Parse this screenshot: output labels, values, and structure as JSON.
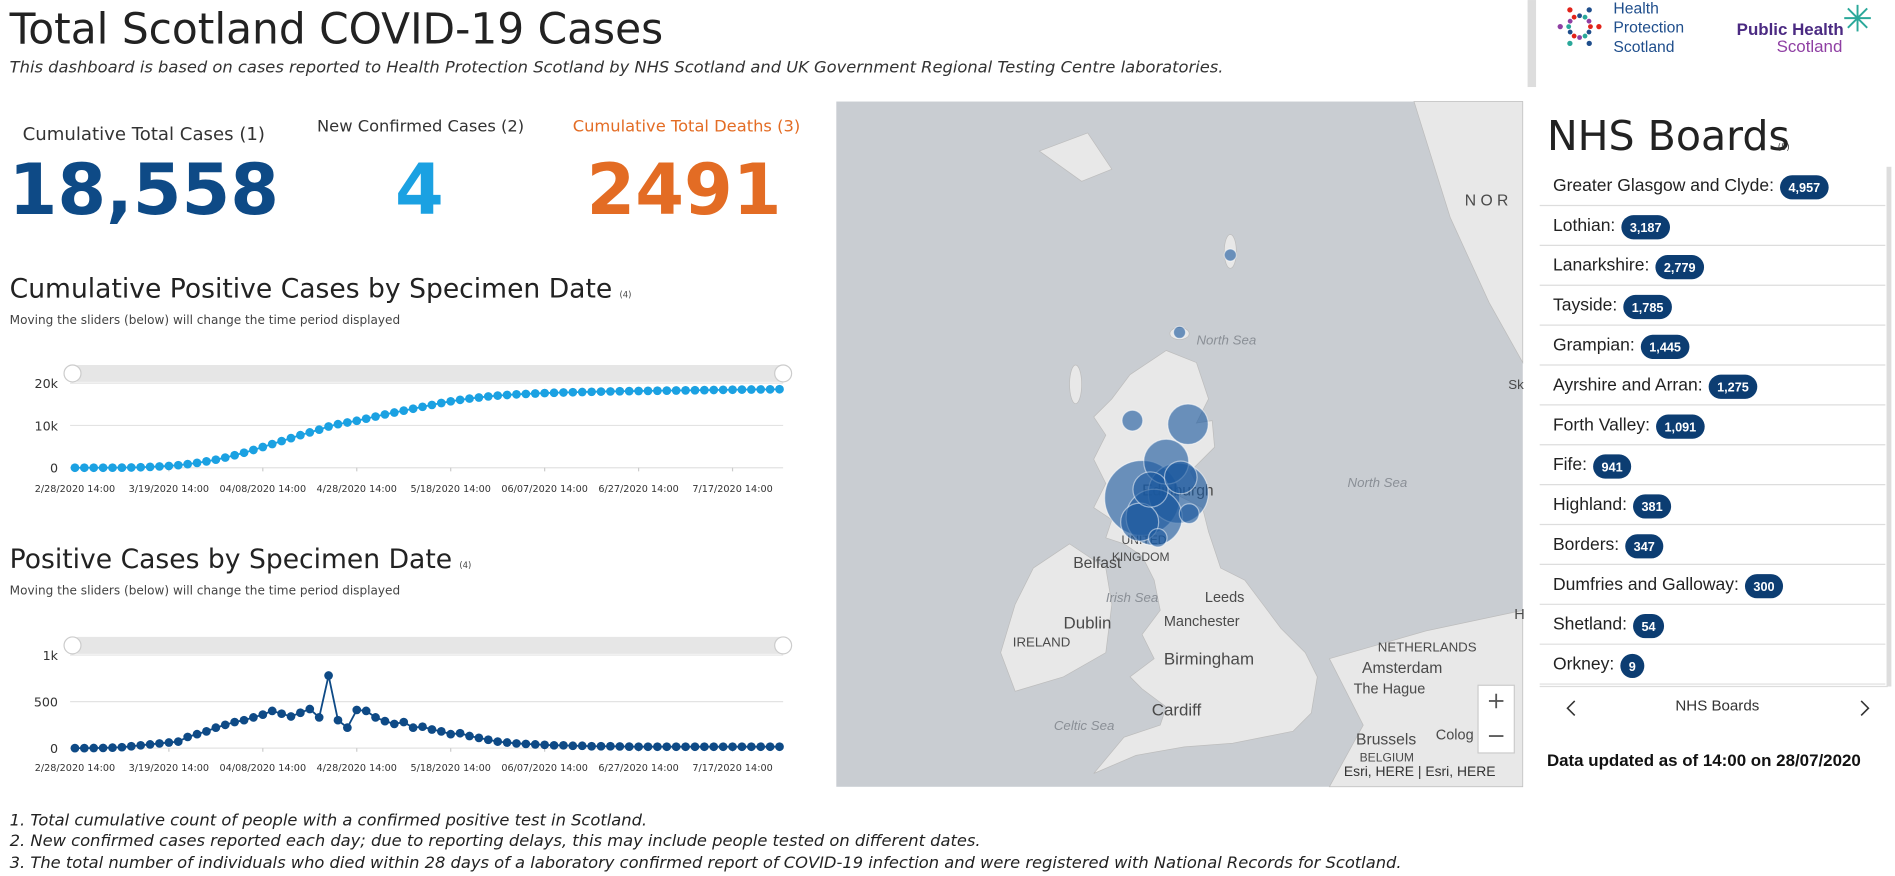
{
  "header": {
    "title": "Total Scotland COVID-19 Cases",
    "subtitle": "This dashboard is based on cases reported to Health Protection Scotland by NHS Scotland and UK Government Regional Testing Centre laboratories.",
    "logo_hps": [
      "Health",
      "Protection",
      "Scotland"
    ],
    "logo_phs": [
      "Public Health",
      "Scotland"
    ]
  },
  "kpis": [
    {
      "label": "Cumulative Total Cases (1)",
      "value": 18558,
      "value_label": "18,558"
    },
    {
      "label": "New Confirmed Cases (2)",
      "value": 4
    },
    {
      "label": "Cumulative Total Deaths (3)",
      "value": 2491
    }
  ],
  "charts": [
    {
      "type": "line",
      "title": "Cumulative Positive Cases by Specimen Date",
      "ref": "(4)",
      "note": "Moving the sliders (below) will change the time period displayed",
      "color": "#1ba1e2",
      "x": [
        0,
        2,
        4,
        6,
        8,
        10,
        12,
        14,
        16,
        18,
        20,
        22,
        24,
        26,
        28,
        30,
        32,
        34,
        36,
        38,
        40,
        42,
        44,
        46,
        48,
        50,
        52,
        54,
        56,
        58,
        60,
        62,
        64,
        66,
        68,
        70,
        72,
        74,
        76,
        78,
        80,
        82,
        84,
        86,
        88,
        90,
        92,
        94,
        96,
        98,
        100,
        102,
        104,
        106,
        108,
        110,
        112,
        114,
        116,
        118,
        120,
        122,
        124,
        126,
        128,
        130,
        132,
        134,
        136,
        138,
        140,
        142,
        144,
        146,
        148,
        150
      ],
      "values": [
        0,
        0,
        1,
        3,
        10,
        25,
        60,
        120,
        200,
        300,
        420,
        600,
        850,
        1150,
        1500,
        1900,
        2400,
        2950,
        3550,
        4200,
        4900,
        5600,
        6300,
        7000,
        7700,
        8350,
        9000,
        9750,
        10300,
        10700,
        11100,
        11600,
        12100,
        12600,
        13050,
        13500,
        13950,
        14400,
        14850,
        15300,
        15700,
        16050,
        16350,
        16600,
        16850,
        17050,
        17200,
        17350,
        17450,
        17550,
        17650,
        17720,
        17790,
        17850,
        17900,
        17950,
        18000,
        18040,
        18080,
        18110,
        18140,
        18170,
        18200,
        18230,
        18260,
        18290,
        18320,
        18350,
        18380,
        18410,
        18440,
        18470,
        18490,
        18510,
        18530,
        18558
      ],
      "xlim": [
        0,
        150
      ],
      "xticks": [
        {
          "value": 0,
          "label": "2/28/2020 14:00"
        },
        {
          "value": 20,
          "label": "3/19/2020 14:00"
        },
        {
          "value": 40,
          "label": "04/08/2020 14:00"
        },
        {
          "value": 60,
          "label": "4/28/2020 14:00"
        },
        {
          "value": 80,
          "label": "5/18/2020 14:00"
        },
        {
          "value": 100,
          "label": "06/07/2020 14:00"
        },
        {
          "value": 120,
          "label": "6/27/2020 14:00"
        },
        {
          "value": 140,
          "label": "7/17/2020 14:00"
        }
      ],
      "ylim": [
        0,
        20000
      ],
      "yticks": [
        0,
        {
          "value": 10000,
          "label": "10k"
        },
        {
          "value": 20000,
          "label": "20k"
        }
      ],
      "grid": true
    },
    {
      "type": "line",
      "title": "Positive Cases by Specimen Date",
      "ref": "(4)",
      "note": "Moving the sliders (below) will change the time period displayed",
      "color": "#0e4a86",
      "x": [
        0,
        2,
        4,
        6,
        8,
        10,
        12,
        14,
        16,
        18,
        20,
        22,
        24,
        26,
        28,
        30,
        32,
        34,
        36,
        38,
        40,
        42,
        44,
        46,
        48,
        50,
        52,
        54,
        56,
        58,
        60,
        62,
        64,
        66,
        68,
        70,
        72,
        74,
        76,
        78,
        80,
        82,
        84,
        86,
        88,
        90,
        92,
        94,
        96,
        98,
        100,
        102,
        104,
        106,
        108,
        110,
        112,
        114,
        116,
        118,
        120,
        122,
        124,
        126,
        128,
        130,
        132,
        134,
        136,
        138,
        140,
        142,
        144,
        146,
        148,
        150
      ],
      "values": [
        0,
        0,
        1,
        2,
        5,
        10,
        20,
        30,
        40,
        50,
        60,
        70,
        120,
        150,
        180,
        220,
        250,
        280,
        300,
        330,
        360,
        400,
        370,
        340,
        380,
        420,
        330,
        780,
        300,
        220,
        410,
        400,
        330,
        290,
        260,
        280,
        220,
        230,
        200,
        180,
        150,
        160,
        130,
        110,
        90,
        70,
        60,
        50,
        45,
        40,
        35,
        30,
        30,
        25,
        25,
        20,
        20,
        20,
        18,
        16,
        15,
        15,
        15,
        15,
        15,
        15,
        15,
        15,
        15,
        15,
        15,
        15,
        15,
        15,
        15,
        15
      ],
      "xlim": [
        0,
        150
      ],
      "xticks": [
        {
          "value": 0,
          "label": "2/28/2020 14:00"
        },
        {
          "value": 20,
          "label": "3/19/2020 14:00"
        },
        {
          "value": 40,
          "label": "04/08/2020 14:00"
        },
        {
          "value": 60,
          "label": "4/28/2020 14:00"
        },
        {
          "value": 80,
          "label": "5/18/2020 14:00"
        },
        {
          "value": 100,
          "label": "06/07/2020 14:00"
        },
        {
          "value": 120,
          "label": "6/27/2020 14:00"
        },
        {
          "value": 140,
          "label": "7/17/2020 14:00"
        }
      ],
      "ylim": [
        0,
        1000
      ],
      "yticks": [
        0,
        500,
        {
          "value": 1000,
          "label": "1k"
        }
      ],
      "grid": true
    }
  ],
  "map": {
    "labels": [
      "N O R",
      "North Sea",
      "Edinburgh",
      "UNITED",
      "KINGDOM",
      "Belfast",
      "Irish Sea",
      "Leeds",
      "Dublin",
      "Manchester",
      "IRELAND",
      "Birmingham",
      "North Sea",
      "NETHERLANDS",
      "Amsterdam",
      "The Hague",
      "Celtic Sea",
      "Cardiff",
      "Brussels",
      "Colog",
      "BELGIUM",
      "Sk",
      "H"
    ],
    "attribution": "Esri, HERE | Esri, HERE"
  },
  "boards": {
    "title": "NHS Boards",
    "ref": "(5)",
    "items": [
      {
        "name": "Greater Glasgow and Clyde:",
        "value": 4957,
        "label": "4,957"
      },
      {
        "name": "Lothian:",
        "value": 3187,
        "label": "3,187"
      },
      {
        "name": "Lanarkshire:",
        "value": 2779,
        "label": "2,779"
      },
      {
        "name": "Tayside:",
        "value": 1785,
        "label": "1,785"
      },
      {
        "name": "Grampian:",
        "value": 1445,
        "label": "1,445"
      },
      {
        "name": "Ayrshire and Arran:",
        "value": 1275,
        "label": "1,275"
      },
      {
        "name": "Forth Valley:",
        "value": 1091,
        "label": "1,091"
      },
      {
        "name": "Fife:",
        "value": 941
      },
      {
        "name": "Highland:",
        "value": 381
      },
      {
        "name": "Borders:",
        "value": 347
      },
      {
        "name": "Dumfries and Galloway:",
        "value": 300
      },
      {
        "name": "Shetland:",
        "value": 54
      },
      {
        "name": "Orkney:",
        "value": 9
      }
    ],
    "pager": "NHS Boards"
  },
  "updated": "Data updated as of 14:00 on 28/07/2020",
  "footnotes": [
    "1. Total cumulative count of people with a confirmed positive test in Scotland.",
    "2. New confirmed cases reported each day; due to reporting delays, this may include people tested on different dates.",
    "3. The total number of individuals who died within 28 days of a laboratory confirmed report of COVID-19 infection and were registered with National Records for Scotland."
  ]
}
